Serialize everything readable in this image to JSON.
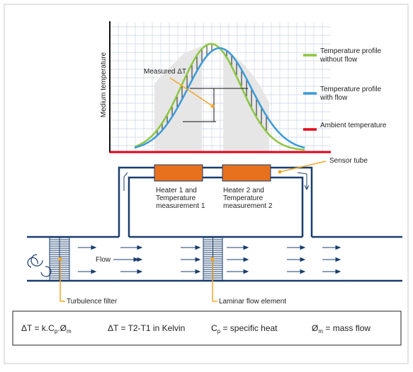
{
  "chart": {
    "y_axis_label": "Medium temperature",
    "annotation": "Measured ΔT",
    "legend": [
      {
        "lines": [
          "Temperature profile",
          "without flow"
        ],
        "color": "#8cc63f"
      },
      {
        "lines": [
          "Temperature profile",
          "with flow"
        ],
        "color": "#3a9ad9"
      },
      {
        "lines": [
          "Ambient temperature"
        ],
        "color": "#e2001a"
      }
    ]
  },
  "sensor": {
    "label": "Sensor tube",
    "heaters": [
      {
        "lines": [
          "Heater 1 and",
          "Temperature",
          "measurement 1"
        ]
      },
      {
        "lines": [
          "Heater 2 and",
          "Temperature",
          "measurement 2"
        ]
      }
    ]
  },
  "pipe": {
    "flow_label": "Flow",
    "turbulence_filter": "Turbulence filter",
    "laminar_element": "Laminar flow element"
  },
  "formulas": [
    [
      "ΔT = k.C",
      "p",
      ".Ø",
      "m"
    ],
    [
      "ΔT = T2-T1 in Kelvin"
    ],
    [
      "C",
      "p",
      " = specific heat"
    ],
    [
      "Ø",
      "m",
      " = mass flow"
    ]
  ]
}
